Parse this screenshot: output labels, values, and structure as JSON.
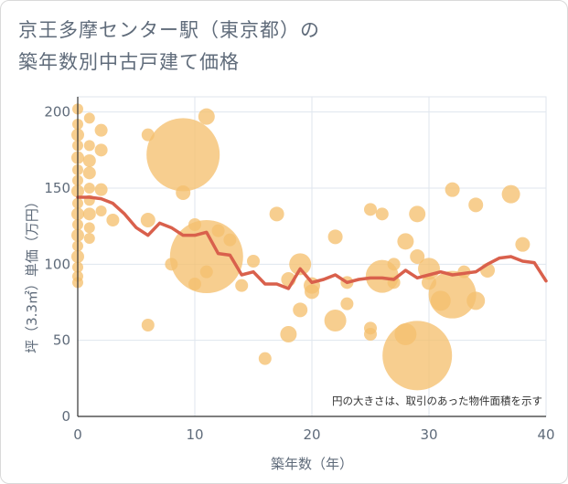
{
  "title": {
    "line1": "京王多摩センター駅（東京都）の",
    "line2": "築年数別中古戸建て価格"
  },
  "chart_data": {
    "type": "scatter",
    "xlabel": "築年数（年）",
    "ylabel": "坪（3.3㎡）単価（万円）",
    "xlim": [
      0,
      40
    ],
    "ylim": [
      0,
      210
    ],
    "x_ticks": [
      "0",
      "10",
      "20",
      "30",
      "40"
    ],
    "y_ticks": [
      "0",
      "50",
      "100",
      "150",
      "200"
    ],
    "note": "円の大きさは、取引のあった物件面積を示す",
    "colors": {
      "bubble": "#f5c06f",
      "line": "#d9604c",
      "grid": "#dfe6ee",
      "axis": "#333333"
    },
    "bubbles": [
      {
        "x": 0,
        "y": 202,
        "s": 6
      },
      {
        "x": 0,
        "y": 192,
        "s": 6
      },
      {
        "x": 0,
        "y": 185,
        "s": 7
      },
      {
        "x": 0,
        "y": 178,
        "s": 6
      },
      {
        "x": 0,
        "y": 170,
        "s": 7
      },
      {
        "x": 0,
        "y": 162,
        "s": 6
      },
      {
        "x": 0,
        "y": 155,
        "s": 6
      },
      {
        "x": 0,
        "y": 148,
        "s": 7
      },
      {
        "x": 0,
        "y": 140,
        "s": 6
      },
      {
        "x": 0,
        "y": 133,
        "s": 7
      },
      {
        "x": 0,
        "y": 126,
        "s": 6
      },
      {
        "x": 0,
        "y": 119,
        "s": 7
      },
      {
        "x": 0,
        "y": 112,
        "s": 6
      },
      {
        "x": 0,
        "y": 105,
        "s": 7
      },
      {
        "x": 0,
        "y": 98,
        "s": 6
      },
      {
        "x": 0,
        "y": 92,
        "s": 6
      },
      {
        "x": 0,
        "y": 88,
        "s": 6
      },
      {
        "x": 1,
        "y": 196,
        "s": 6
      },
      {
        "x": 1,
        "y": 178,
        "s": 6
      },
      {
        "x": 1,
        "y": 168,
        "s": 7
      },
      {
        "x": 1,
        "y": 160,
        "s": 7
      },
      {
        "x": 1,
        "y": 150,
        "s": 6
      },
      {
        "x": 1,
        "y": 142,
        "s": 6
      },
      {
        "x": 1,
        "y": 133,
        "s": 7
      },
      {
        "x": 1,
        "y": 124,
        "s": 6
      },
      {
        "x": 1,
        "y": 117,
        "s": 6
      },
      {
        "x": 2,
        "y": 188,
        "s": 7
      },
      {
        "x": 2,
        "y": 175,
        "s": 7
      },
      {
        "x": 2,
        "y": 149,
        "s": 7
      },
      {
        "x": 2,
        "y": 135,
        "s": 6
      },
      {
        "x": 3,
        "y": 129,
        "s": 7
      },
      {
        "x": 6,
        "y": 185,
        "s": 7
      },
      {
        "x": 6,
        "y": 129,
        "s": 8
      },
      {
        "x": 6,
        "y": 60,
        "s": 7
      },
      {
        "x": 8,
        "y": 100,
        "s": 7
      },
      {
        "x": 9,
        "y": 172,
        "s": 40
      },
      {
        "x": 9,
        "y": 147,
        "s": 8
      },
      {
        "x": 10,
        "y": 126,
        "s": 7
      },
      {
        "x": 10,
        "y": 87,
        "s": 7
      },
      {
        "x": 11,
        "y": 197,
        "s": 9
      },
      {
        "x": 11,
        "y": 105,
        "s": 40
      },
      {
        "x": 11,
        "y": 95,
        "s": 7
      },
      {
        "x": 12,
        "y": 122,
        "s": 7
      },
      {
        "x": 13,
        "y": 116,
        "s": 7
      },
      {
        "x": 14,
        "y": 86,
        "s": 7
      },
      {
        "x": 15,
        "y": 102,
        "s": 7
      },
      {
        "x": 16,
        "y": 38,
        "s": 7
      },
      {
        "x": 17,
        "y": 133,
        "s": 8
      },
      {
        "x": 18,
        "y": 54,
        "s": 9
      },
      {
        "x": 18,
        "y": 90,
        "s": 8
      },
      {
        "x": 19,
        "y": 100,
        "s": 12
      },
      {
        "x": 19,
        "y": 70,
        "s": 8
      },
      {
        "x": 20,
        "y": 86,
        "s": 9
      },
      {
        "x": 20,
        "y": 82,
        "s": 8
      },
      {
        "x": 22,
        "y": 118,
        "s": 8
      },
      {
        "x": 22,
        "y": 63,
        "s": 12
      },
      {
        "x": 23,
        "y": 74,
        "s": 7
      },
      {
        "x": 23,
        "y": 88,
        "s": 7
      },
      {
        "x": 25,
        "y": 136,
        "s": 7
      },
      {
        "x": 25,
        "y": 58,
        "s": 7
      },
      {
        "x": 25,
        "y": 54,
        "s": 7
      },
      {
        "x": 26,
        "y": 133,
        "s": 7
      },
      {
        "x": 26,
        "y": 92,
        "s": 18
      },
      {
        "x": 27,
        "y": 88,
        "s": 7
      },
      {
        "x": 27,
        "y": 100,
        "s": 7
      },
      {
        "x": 28,
        "y": 115,
        "s": 9
      },
      {
        "x": 28,
        "y": 54,
        "s": 12
      },
      {
        "x": 29,
        "y": 40,
        "s": 38
      },
      {
        "x": 29,
        "y": 133,
        "s": 9
      },
      {
        "x": 29,
        "y": 105,
        "s": 8
      },
      {
        "x": 30,
        "y": 97,
        "s": 12
      },
      {
        "x": 30,
        "y": 88,
        "s": 8
      },
      {
        "x": 31,
        "y": 76,
        "s": 11
      },
      {
        "x": 32,
        "y": 149,
        "s": 8
      },
      {
        "x": 32,
        "y": 80,
        "s": 26
      },
      {
        "x": 33,
        "y": 95,
        "s": 7
      },
      {
        "x": 34,
        "y": 139,
        "s": 8
      },
      {
        "x": 34,
        "y": 76,
        "s": 10
      },
      {
        "x": 35,
        "y": 96,
        "s": 8
      },
      {
        "x": 37,
        "y": 146,
        "s": 10
      },
      {
        "x": 38,
        "y": 113,
        "s": 8
      }
    ],
    "trend": {
      "x": [
        0,
        1,
        2,
        3,
        4,
        5,
        6,
        7,
        8,
        9,
        10,
        11,
        12,
        13,
        14,
        15,
        16,
        17,
        18,
        19,
        20,
        21,
        22,
        23,
        24,
        25,
        26,
        27,
        28,
        29,
        30,
        31,
        32,
        33,
        34,
        35,
        36,
        37,
        38,
        39,
        40
      ],
      "y": [
        144,
        144,
        143,
        140,
        133,
        124,
        119,
        127,
        124,
        119,
        119,
        121,
        107,
        106,
        93,
        95,
        87,
        87,
        84,
        97,
        88,
        90,
        93,
        88,
        90,
        91,
        91,
        90,
        96,
        91,
        93,
        95,
        93,
        94,
        95,
        100,
        104,
        105,
        102,
        101,
        89
      ]
    }
  }
}
